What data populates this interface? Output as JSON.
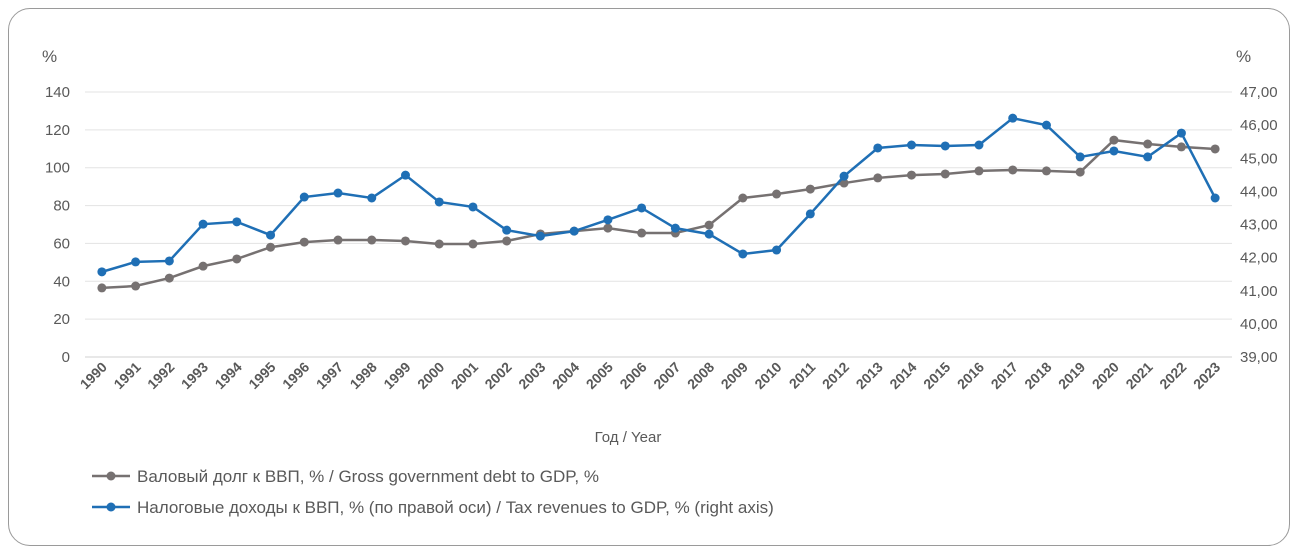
{
  "chart_data": {
    "type": "line",
    "xlabel": "Год / Year",
    "ylabel_left": "%",
    "ylabel_right": "%",
    "ylim_left": [
      0,
      140
    ],
    "ylim_right": [
      39,
      47
    ],
    "yticks_left": [
      "0",
      "20",
      "40",
      "60",
      "80",
      "100",
      "120",
      "140"
    ],
    "yticks_right": [
      "39,00",
      "40,00",
      "41,00",
      "42,00",
      "43,00",
      "44,00",
      "45,00",
      "46,00",
      "47,00"
    ],
    "grid": true,
    "legend_position": "bottom-left",
    "x": [
      "1990",
      "1991",
      "1992",
      "1993",
      "1994",
      "1995",
      "1996",
      "1997",
      "1998",
      "1999",
      "2000",
      "2001",
      "2002",
      "2003",
      "2004",
      "2005",
      "2006",
      "2007",
      "2008",
      "2009",
      "2010",
      "2011",
      "2012",
      "2013",
      "2014",
      "2015",
      "2016",
      "2017",
      "2018",
      "2019",
      "2020",
      "2021",
      "2022",
      "2023"
    ],
    "series": [
      {
        "name": "Валовый долг к ВВП, % / Gross government debt to GDP, %",
        "axis": "left",
        "color": "#767171",
        "values": [
          36.5,
          37.5,
          41.7,
          48,
          51.8,
          58,
          60.7,
          61.8,
          61.8,
          61.3,
          59.7,
          59.7,
          61.3,
          65,
          66.5,
          68.1,
          65.5,
          65.5,
          69.7,
          84,
          86.1,
          88.7,
          91.9,
          94.6,
          96.1,
          96.7,
          98.3,
          98.8,
          98.3,
          97.7,
          114.6,
          112.5,
          111,
          109.9
        ]
      },
      {
        "name": "Налоговые доходы к ВВП, % (по правой оси) / Tax revenues to GDP, % (right axis)",
        "axis": "right",
        "color": "#1F6FB5",
        "values": [
          41.57,
          41.87,
          41.9,
          43.01,
          43.08,
          42.68,
          43.83,
          43.95,
          43.8,
          44.49,
          43.68,
          43.53,
          42.83,
          42.65,
          42.8,
          43.14,
          43.5,
          42.89,
          42.71,
          42.11,
          42.23,
          43.32,
          44.46,
          45.31,
          45.4,
          45.37,
          45.4,
          46.21,
          46.0,
          45.04,
          45.22,
          45.04,
          45.76,
          43.8
        ]
      }
    ]
  }
}
